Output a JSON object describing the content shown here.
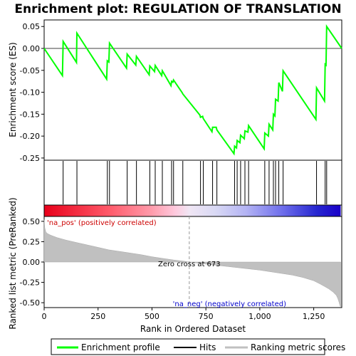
{
  "chart_data": [
    {
      "type": "line",
      "title": "Enrichment plot: REGULATION OF TRANSLATION",
      "ylabel": "Enrichment score (ES)",
      "xlim": [
        0,
        1380
      ],
      "ylim": [
        -0.255,
        0.065
      ],
      "yticks": [
        0.05,
        0.0,
        -0.05,
        -0.1,
        -0.15,
        -0.2,
        -0.25
      ],
      "ytick_labels": [
        "0.05",
        "0.00",
        "-0.05",
        "-0.10",
        "-0.15",
        "-0.20",
        "-0.25"
      ],
      "grid": false,
      "series": [
        {
          "name": "Enrichment profile",
          "color": "#00ff00",
          "x": [
            0,
            85,
            88,
            150,
            152,
            290,
            293,
            300,
            303,
            382,
            385,
            425,
            428,
            487,
            490,
            512,
            515,
            545,
            548,
            588,
            591,
            597,
            600,
            640,
            643,
            722,
            725,
            735,
            738,
            778,
            781,
            798,
            801,
            880,
            883,
            892,
            895,
            908,
            911,
            928,
            931,
            945,
            948,
            1020,
            1023,
            1040,
            1043,
            1060,
            1063,
            1070,
            1073,
            1085,
            1088,
            1105,
            1108,
            1260,
            1263,
            1300,
            1303,
            1307,
            1310,
            1380
          ],
          "y": [
            0.0,
            -0.062,
            0.016,
            -0.032,
            0.035,
            -0.07,
            -0.028,
            -0.031,
            0.012,
            -0.045,
            -0.013,
            -0.038,
            -0.018,
            -0.06,
            -0.04,
            -0.053,
            -0.039,
            -0.062,
            -0.051,
            -0.085,
            -0.075,
            -0.077,
            -0.072,
            -0.101,
            -0.104,
            -0.152,
            -0.157,
            -0.155,
            -0.16,
            -0.19,
            -0.18,
            -0.18,
            -0.186,
            -0.24,
            -0.223,
            -0.227,
            -0.21,
            -0.215,
            -0.198,
            -0.206,
            -0.188,
            -0.191,
            -0.176,
            -0.229,
            -0.193,
            -0.2,
            -0.173,
            -0.186,
            -0.15,
            -0.154,
            -0.116,
            -0.12,
            -0.078,
            -0.098,
            -0.051,
            -0.162,
            -0.09,
            -0.12,
            -0.036,
            -0.038,
            0.05,
            0.0
          ]
        }
      ]
    },
    {
      "type": "hits",
      "series": [
        {
          "name": "Hits",
          "color": "#000000",
          "x": [
            88,
            152,
            293,
            303,
            385,
            428,
            490,
            515,
            548,
            591,
            600,
            643,
            725,
            738,
            781,
            801,
            883,
            895,
            911,
            931,
            948,
            1023,
            1043,
            1063,
            1073,
            1088,
            1108,
            1263,
            1303,
            1310
          ]
        }
      ]
    },
    {
      "type": "area",
      "ylabel": "Ranked list metric (PreRanked)",
      "xlabel": "Rank in Ordered Dataset",
      "xlim": [
        0,
        1380
      ],
      "ylim": [
        -0.56,
        0.56
      ],
      "xticks": [
        0,
        250,
        500,
        750,
        1000,
        1250
      ],
      "xtick_labels": [
        "0",
        "250",
        "500",
        "750",
        "1,000",
        "1,250"
      ],
      "yticks": [
        0.5,
        0.25,
        0.0,
        -0.25,
        -0.5
      ],
      "ytick_labels": [
        "0.50",
        "0.25",
        "0.00",
        "-0.25",
        "-0.50"
      ],
      "series": [
        {
          "name": "Ranking metric scores",
          "color": "#c0c0c0",
          "x": [
            0,
            3,
            8,
            15,
            30,
            60,
            100,
            150,
            200,
            250,
            300,
            350,
            400,
            450,
            500,
            550,
            600,
            650,
            673,
            700,
            750,
            800,
            850,
            900,
            950,
            1000,
            1050,
            1100,
            1150,
            1200,
            1250,
            1280,
            1300,
            1320,
            1340,
            1355,
            1362,
            1368,
            1372,
            1375
          ],
          "y": [
            0.52,
            0.42,
            0.37,
            0.35,
            0.33,
            0.3,
            0.27,
            0.24,
            0.21,
            0.18,
            0.15,
            0.13,
            0.11,
            0.09,
            0.065,
            0.045,
            0.025,
            0.01,
            0.0,
            -0.01,
            -0.025,
            -0.04,
            -0.055,
            -0.07,
            -0.085,
            -0.1,
            -0.12,
            -0.14,
            -0.16,
            -0.19,
            -0.23,
            -0.27,
            -0.3,
            -0.33,
            -0.37,
            -0.41,
            -0.45,
            -0.5,
            -0.54,
            -0.55
          ]
        }
      ],
      "annotations": [
        {
          "text": "'na_pos' (positively correlated)",
          "color": "#cc0000",
          "position": "upper-left"
        },
        {
          "text": "Zero cross at 673",
          "color": "#000000",
          "x": 673
        },
        {
          "text": "'na_neg' (negatively correlated)",
          "color": "#0000cc",
          "position": "lower-right"
        }
      ]
    }
  ],
  "legend": {
    "placement": "bottom",
    "items": [
      {
        "label": "Enrichment profile",
        "color": "#00ff00"
      },
      {
        "label": "Hits",
        "color": "#000000"
      },
      {
        "label": "Ranking metric scores",
        "color": "#c0c0c0"
      }
    ]
  }
}
